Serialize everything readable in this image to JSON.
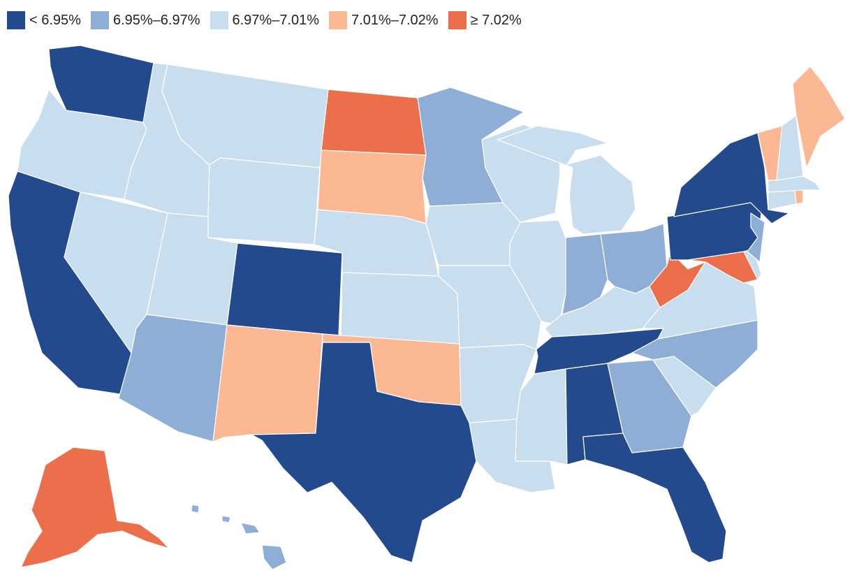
{
  "colors": {
    "c1": "#234a8c",
    "c2": "#8eaed6",
    "c3": "#c8dded",
    "c4": "#fbb892",
    "c5": "#ec6f4b"
  },
  "legend": [
    {
      "label": "< 6.95%",
      "color": "#234a8c"
    },
    {
      "label": "6.95%–6.97%",
      "color": "#8eaed6"
    },
    {
      "label": "6.97%–7.01%",
      "color": "#c8dded"
    },
    {
      "label": "7.01%–7.02%",
      "color": "#fbb892"
    },
    {
      "label": "≥ 7.02%",
      "color": "#ec6f4b"
    }
  ],
  "states": [
    {
      "id": "WA",
      "bin": "c1"
    },
    {
      "id": "OR",
      "bin": "c3"
    },
    {
      "id": "CA",
      "bin": "c1"
    },
    {
      "id": "ID",
      "bin": "c3"
    },
    {
      "id": "NV",
      "bin": "c3"
    },
    {
      "id": "MT",
      "bin": "c3"
    },
    {
      "id": "WY",
      "bin": "c3"
    },
    {
      "id": "UT",
      "bin": "c3"
    },
    {
      "id": "AZ",
      "bin": "c2"
    },
    {
      "id": "CO",
      "bin": "c1"
    },
    {
      "id": "NM",
      "bin": "c4"
    },
    {
      "id": "ND",
      "bin": "c5"
    },
    {
      "id": "SD",
      "bin": "c4"
    },
    {
      "id": "NE",
      "bin": "c3"
    },
    {
      "id": "KS",
      "bin": "c3"
    },
    {
      "id": "OK",
      "bin": "c4"
    },
    {
      "id": "TX",
      "bin": "c1"
    },
    {
      "id": "MN",
      "bin": "c2"
    },
    {
      "id": "IA",
      "bin": "c3"
    },
    {
      "id": "MO",
      "bin": "c3"
    },
    {
      "id": "AR",
      "bin": "c3"
    },
    {
      "id": "LA",
      "bin": "c3"
    },
    {
      "id": "WI",
      "bin": "c3"
    },
    {
      "id": "IL",
      "bin": "c3"
    },
    {
      "id": "MI",
      "bin": "c3"
    },
    {
      "id": "IN",
      "bin": "c2"
    },
    {
      "id": "OH",
      "bin": "c2"
    },
    {
      "id": "KY",
      "bin": "c3"
    },
    {
      "id": "TN",
      "bin": "c1"
    },
    {
      "id": "MS",
      "bin": "c3"
    },
    {
      "id": "AL",
      "bin": "c1"
    },
    {
      "id": "GA",
      "bin": "c2"
    },
    {
      "id": "FL",
      "bin": "c1"
    },
    {
      "id": "SC",
      "bin": "c3"
    },
    {
      "id": "NC",
      "bin": "c2"
    },
    {
      "id": "VA",
      "bin": "c3"
    },
    {
      "id": "WV",
      "bin": "c5"
    },
    {
      "id": "MD",
      "bin": "c5"
    },
    {
      "id": "DE",
      "bin": "c3"
    },
    {
      "id": "PA",
      "bin": "c1"
    },
    {
      "id": "NJ",
      "bin": "c2"
    },
    {
      "id": "NY",
      "bin": "c1"
    },
    {
      "id": "CT",
      "bin": "c3"
    },
    {
      "id": "RI",
      "bin": "c4"
    },
    {
      "id": "MA",
      "bin": "c3"
    },
    {
      "id": "VT",
      "bin": "c4"
    },
    {
      "id": "NH",
      "bin": "c3"
    },
    {
      "id": "ME",
      "bin": "c4"
    },
    {
      "id": "AK",
      "bin": "c5"
    },
    {
      "id": "HI",
      "bin": "c2"
    }
  ]
}
